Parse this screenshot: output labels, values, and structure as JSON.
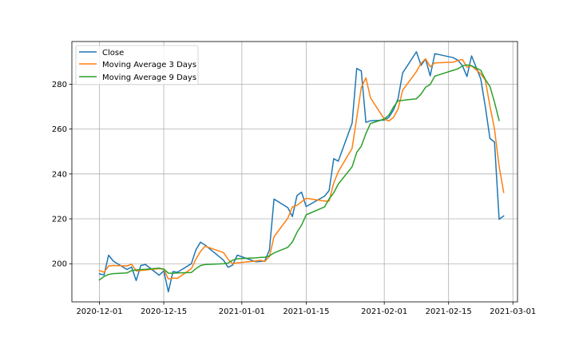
{
  "chart_data": {
    "type": "line",
    "title": "",
    "xlabel": "",
    "ylabel": "",
    "grid": true,
    "legend_position": "top-left",
    "xlim": [
      "2020-11-25",
      "2021-03-02"
    ],
    "ylim": [
      183,
      299
    ],
    "xticks": [
      {
        "date": "2020-12-01",
        "label": "2020-12-01"
      },
      {
        "date": "2020-12-15",
        "label": "2020-12-15"
      },
      {
        "date": "2021-01-01",
        "label": "2021-01-01"
      },
      {
        "date": "2021-01-15",
        "label": "2021-01-15"
      },
      {
        "date": "2021-02-01",
        "label": "2021-02-01"
      },
      {
        "date": "2021-02-15",
        "label": "2021-02-15"
      },
      {
        "date": "2021-03-01",
        "label": "2021-03-01"
      }
    ],
    "yticks": [
      200,
      220,
      240,
      260,
      280
    ],
    "ytick_labels": [
      "200",
      "220",
      "240",
      "260",
      "280"
    ],
    "series": [
      {
        "name": "Close",
        "color": "#1f77b4",
        "points": [
          [
            "2020-12-01",
            195.5
          ],
          [
            "2020-12-02",
            195.0
          ],
          [
            "2020-12-03",
            203.8
          ],
          [
            "2020-12-04",
            201.2
          ],
          [
            "2020-12-07",
            197.4
          ],
          [
            "2020-12-08",
            198.5
          ],
          [
            "2020-12-09",
            192.5
          ],
          [
            "2020-12-10",
            199.2
          ],
          [
            "2020-12-11",
            199.7
          ],
          [
            "2020-12-14",
            194.9
          ],
          [
            "2020-12-15",
            196.8
          ],
          [
            "2020-12-16",
            187.5
          ],
          [
            "2020-12-17",
            196.5
          ],
          [
            "2020-12-18",
            196.2
          ],
          [
            "2020-12-21",
            200.0
          ],
          [
            "2020-12-22",
            206.2
          ],
          [
            "2020-12-23",
            209.6
          ],
          [
            "2020-12-24",
            208.3
          ],
          [
            "2020-12-28",
            201.6
          ],
          [
            "2020-12-29",
            198.4
          ],
          [
            "2020-12-30",
            199.4
          ],
          [
            "2020-12-31",
            203.8
          ],
          [
            "2021-01-04",
            200.9
          ],
          [
            "2021-01-05",
            201.0
          ],
          [
            "2021-01-06",
            201.2
          ],
          [
            "2021-01-07",
            206.2
          ],
          [
            "2021-01-08",
            228.8
          ],
          [
            "2021-01-11",
            225.0
          ],
          [
            "2021-01-12",
            221.0
          ],
          [
            "2021-01-13",
            230.4
          ],
          [
            "2021-01-14",
            231.9
          ],
          [
            "2021-01-15",
            225.5
          ],
          [
            "2021-01-19",
            230.1
          ],
          [
            "2021-01-20",
            232.6
          ],
          [
            "2021-01-21",
            246.8
          ],
          [
            "2021-01-22",
            245.7
          ],
          [
            "2021-01-25",
            262.6
          ],
          [
            "2021-01-26",
            287.0
          ],
          [
            "2021-01-27",
            285.9
          ],
          [
            "2021-01-28",
            263.0
          ],
          [
            "2021-01-29",
            263.7
          ],
          [
            "2021-02-01",
            264.0
          ],
          [
            "2021-02-02",
            265.2
          ],
          [
            "2021-02-03",
            268.5
          ],
          [
            "2021-02-04",
            273.5
          ],
          [
            "2021-02-05",
            285.0
          ],
          [
            "2021-02-08",
            294.4
          ],
          [
            "2021-02-09",
            288.4
          ],
          [
            "2021-02-10",
            291.2
          ],
          [
            "2021-02-11",
            283.7
          ],
          [
            "2021-02-12",
            293.6
          ],
          [
            "2021-02-16",
            291.8
          ],
          [
            "2021-02-17",
            290.7
          ],
          [
            "2021-02-18",
            288.3
          ],
          [
            "2021-02-19",
            283.4
          ],
          [
            "2021-02-20",
            292.6
          ],
          [
            "2021-02-22",
            282.4
          ],
          [
            "2021-02-23",
            270.0
          ],
          [
            "2021-02-24",
            255.8
          ],
          [
            "2021-02-25",
            254.2
          ],
          [
            "2021-02-26",
            219.8
          ],
          [
            "2021-02-27",
            221.3
          ]
        ]
      },
      {
        "name": "Moving Average 3 Days",
        "color": "#ff7f0e",
        "points": [
          [
            "2020-12-01",
            197.0
          ],
          [
            "2020-12-02",
            196.2
          ],
          [
            "2020-12-03",
            199.0
          ],
          [
            "2020-12-04",
            199.2
          ],
          [
            "2020-12-07",
            199.0
          ],
          [
            "2020-12-08",
            199.8
          ],
          [
            "2020-12-09",
            196.8
          ],
          [
            "2020-12-10",
            197.0
          ],
          [
            "2020-12-11",
            197.2
          ],
          [
            "2020-12-14",
            197.8
          ],
          [
            "2020-12-15",
            197.5
          ],
          [
            "2020-12-16",
            193.2
          ],
          [
            "2020-12-17",
            193.6
          ],
          [
            "2020-12-18",
            193.5
          ],
          [
            "2020-12-21",
            197.8
          ],
          [
            "2020-12-22",
            202.0
          ],
          [
            "2020-12-23",
            205.5
          ],
          [
            "2020-12-24",
            207.8
          ],
          [
            "2020-12-28",
            205.0
          ],
          [
            "2020-12-29",
            202.0
          ],
          [
            "2020-12-30",
            200.0
          ],
          [
            "2020-12-31",
            200.4
          ],
          [
            "2021-01-04",
            201.2
          ],
          [
            "2021-01-05",
            201.5
          ],
          [
            "2021-01-06",
            201.0
          ],
          [
            "2021-01-07",
            203.2
          ],
          [
            "2021-01-08",
            212.0
          ],
          [
            "2021-01-11",
            220.3
          ],
          [
            "2021-01-12",
            225.3
          ],
          [
            "2021-01-13",
            226.0
          ],
          [
            "2021-01-14",
            227.6
          ],
          [
            "2021-01-15",
            229.2
          ],
          [
            "2021-01-19",
            227.9
          ],
          [
            "2021-01-20",
            227.9
          ],
          [
            "2021-01-21",
            236.0
          ],
          [
            "2021-01-22",
            241.0
          ],
          [
            "2021-01-25",
            251.4
          ],
          [
            "2021-01-26",
            265.0
          ],
          [
            "2021-01-27",
            278.5
          ],
          [
            "2021-01-28",
            282.8
          ],
          [
            "2021-01-29",
            273.9
          ],
          [
            "2021-02-01",
            264.4
          ],
          [
            "2021-02-02",
            263.6
          ],
          [
            "2021-02-03",
            265.2
          ],
          [
            "2021-02-04",
            268.9
          ],
          [
            "2021-02-05",
            277.3
          ],
          [
            "2021-02-08",
            285.6
          ],
          [
            "2021-02-09",
            289.3
          ],
          [
            "2021-02-10",
            291.3
          ],
          [
            "2021-02-11",
            287.8
          ],
          [
            "2021-02-12",
            289.5
          ],
          [
            "2021-02-16",
            289.8
          ],
          [
            "2021-02-17",
            290.5
          ],
          [
            "2021-02-18",
            291.0
          ],
          [
            "2021-02-19",
            287.6
          ],
          [
            "2021-02-20",
            288.2
          ],
          [
            "2021-02-22",
            284.6
          ],
          [
            "2021-02-23",
            281.8
          ],
          [
            "2021-02-24",
            270.2
          ],
          [
            "2021-02-25",
            260.0
          ],
          [
            "2021-02-26",
            243.4
          ],
          [
            "2021-02-27",
            231.8
          ]
        ]
      },
      {
        "name": "Moving Average 9 Days",
        "color": "#2ca02c",
        "points": [
          [
            "2020-12-01",
            192.8
          ],
          [
            "2020-12-02",
            194.3
          ],
          [
            "2020-12-03",
            195.2
          ],
          [
            "2020-12-04",
            195.6
          ],
          [
            "2020-12-07",
            195.9
          ],
          [
            "2020-12-08",
            196.9
          ],
          [
            "2020-12-09",
            197.2
          ],
          [
            "2020-12-10",
            197.4
          ],
          [
            "2020-12-11",
            197.5
          ],
          [
            "2020-12-14",
            198.0
          ],
          [
            "2020-12-15",
            197.6
          ],
          [
            "2020-12-16",
            195.8
          ],
          [
            "2020-12-17",
            195.7
          ],
          [
            "2020-12-18",
            195.9
          ],
          [
            "2020-12-21",
            196.1
          ],
          [
            "2020-12-22",
            197.8
          ],
          [
            "2020-12-23",
            199.2
          ],
          [
            "2020-12-24",
            199.6
          ],
          [
            "2020-12-28",
            200.0
          ],
          [
            "2020-12-29",
            200.3
          ],
          [
            "2020-12-30",
            201.6
          ],
          [
            "2020-12-31",
            202.2
          ],
          [
            "2021-01-04",
            202.6
          ],
          [
            "2021-01-05",
            202.8
          ],
          [
            "2021-01-06",
            202.9
          ],
          [
            "2021-01-07",
            203.5
          ],
          [
            "2021-01-08",
            204.8
          ],
          [
            "2021-01-11",
            207.3
          ],
          [
            "2021-01-12",
            209.7
          ],
          [
            "2021-01-13",
            214.0
          ],
          [
            "2021-01-14",
            217.2
          ],
          [
            "2021-01-15",
            221.8
          ],
          [
            "2021-01-19",
            225.3
          ],
          [
            "2021-01-20",
            228.9
          ],
          [
            "2021-01-21",
            231.6
          ],
          [
            "2021-01-22",
            235.5
          ],
          [
            "2021-01-25",
            243.2
          ],
          [
            "2021-01-26",
            249.6
          ],
          [
            "2021-01-27",
            252.4
          ],
          [
            "2021-01-28",
            258.0
          ],
          [
            "2021-01-29",
            262.5
          ],
          [
            "2021-02-01",
            264.5
          ],
          [
            "2021-02-02",
            266.2
          ],
          [
            "2021-02-03",
            269.8
          ],
          [
            "2021-02-04",
            272.6
          ],
          [
            "2021-02-05",
            272.8
          ],
          [
            "2021-02-08",
            273.5
          ],
          [
            "2021-02-09",
            275.6
          ],
          [
            "2021-02-10",
            278.6
          ],
          [
            "2021-02-11",
            279.9
          ],
          [
            "2021-02-12",
            283.6
          ],
          [
            "2021-02-16",
            286.2
          ],
          [
            "2021-02-17",
            286.8
          ],
          [
            "2021-02-18",
            288.1
          ],
          [
            "2021-02-19",
            288.6
          ],
          [
            "2021-02-20",
            288.2
          ],
          [
            "2021-02-22",
            286.2
          ],
          [
            "2021-02-23",
            282.1
          ],
          [
            "2021-02-24",
            279.0
          ],
          [
            "2021-02-25",
            272.0
          ],
          [
            "2021-02-26",
            263.8
          ]
        ]
      }
    ]
  },
  "legend": {
    "items": [
      "Close",
      "Moving Average 3 Days",
      "Moving Average 9 Days"
    ]
  }
}
